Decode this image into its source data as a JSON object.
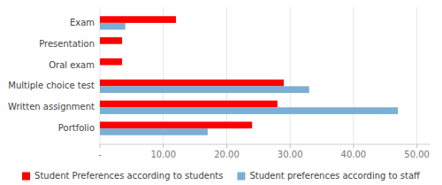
{
  "chart_data": {
    "type": "bar",
    "orientation": "horizontal",
    "categories": [
      "Portfolio",
      "Written assignment",
      "Multiple choice test",
      "Oral exam",
      "Presentation",
      "Exam"
    ],
    "series": [
      {
        "name": "Student Preferences according to students",
        "color": "#FF0000",
        "values": [
          24.0,
          28.0,
          29.0,
          3.5,
          3.5,
          12.0
        ]
      },
      {
        "name": "Student preferences according to staff",
        "color": "#7BAFD4",
        "values": [
          17.0,
          47.0,
          33.0,
          0.0,
          0.0,
          4.0
        ]
      }
    ],
    "xlim": [
      0,
      52
    ],
    "xticks": [
      {
        "value": 0,
        "label": "-"
      },
      {
        "value": 10,
        "label": "10.00"
      },
      {
        "value": 20,
        "label": "20.00"
      },
      {
        "value": 30,
        "label": "30.00"
      },
      {
        "value": 40,
        "label": "40.00"
      },
      {
        "value": 50,
        "label": "50.00"
      }
    ],
    "grid": true,
    "legend": "bottom"
  }
}
